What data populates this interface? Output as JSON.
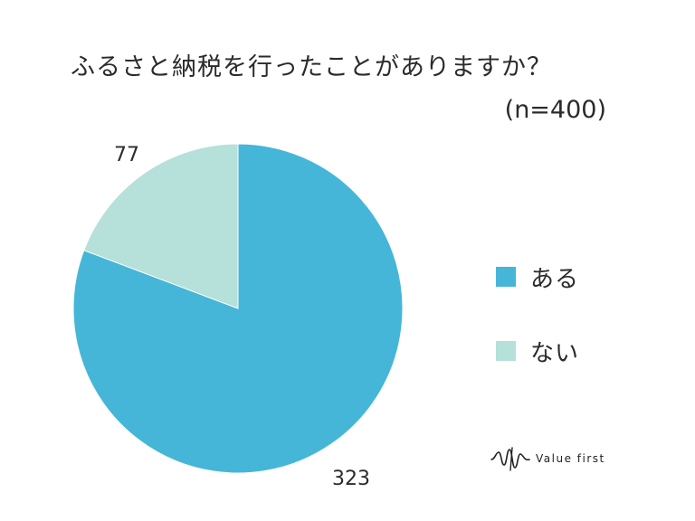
{
  "chart_data": {
    "type": "pie",
    "title": "ふるさと納税を行ったことがありますか？",
    "subtitle": "(n=400)",
    "categories": [
      "ある",
      "ない"
    ],
    "values": [
      323,
      77
    ],
    "colors": [
      "#45b6d8",
      "#b6e0da"
    ],
    "start_angle_deg": 0,
    "direction": "clockwise"
  },
  "legend": {
    "items": [
      {
        "label": "ある",
        "color": "#45b6d8"
      },
      {
        "label": "ない",
        "color": "#b6e0da"
      }
    ]
  },
  "brand": {
    "name": "Value first",
    "icon": "wave-vf-logo-icon"
  }
}
